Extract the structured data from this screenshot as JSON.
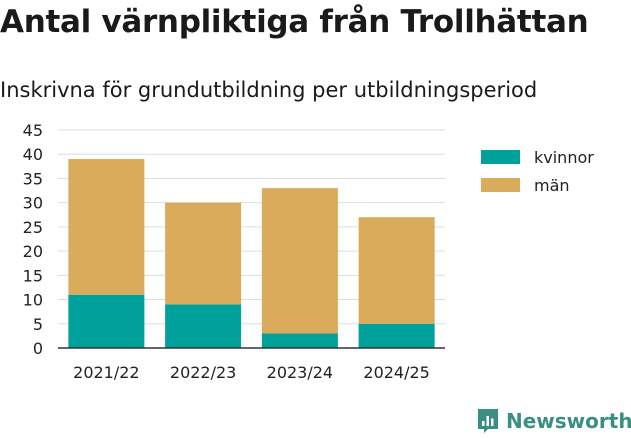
{
  "chart_data": {
    "type": "bar",
    "stacked": true,
    "title": "Antal värnpliktiga från Trollhättan",
    "subtitle": "Inskrivna för grundutbildning per utbildningsperiod",
    "categories": [
      "2021/22",
      "2022/23",
      "2023/24",
      "2024/25"
    ],
    "series": [
      {
        "name": "kvinnor",
        "color": "#00a19a",
        "values": [
          11,
          9,
          3,
          5
        ]
      },
      {
        "name": "män",
        "color": "#d9ab5b",
        "values": [
          28,
          21,
          30,
          22
        ]
      }
    ],
    "ylim": [
      0,
      45
    ],
    "yticks": [
      0,
      5,
      10,
      15,
      20,
      25,
      30,
      35,
      40,
      45
    ],
    "grid": true,
    "legend_position": "right"
  },
  "brand": {
    "name": "Newsworthy",
    "color": "#3a8f84"
  }
}
